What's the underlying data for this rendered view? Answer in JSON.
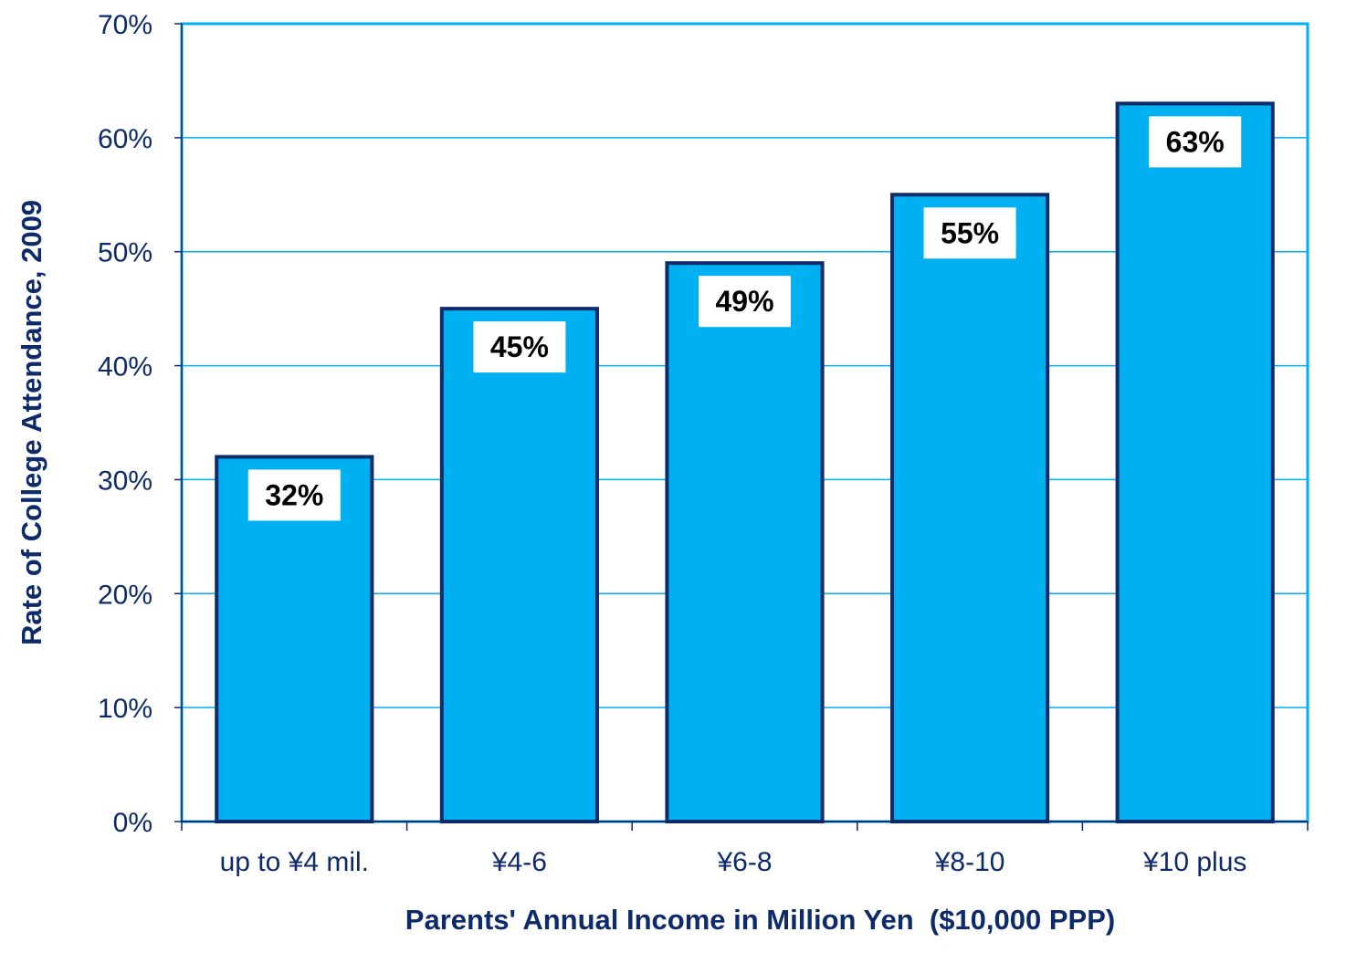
{
  "chart_data": {
    "type": "bar",
    "title": "",
    "categories": [
      "up to ¥4 mil.",
      "¥4-6",
      "¥6-8",
      "¥8-10",
      "¥10 plus"
    ],
    "values": [
      32,
      45,
      49,
      55,
      63
    ],
    "data_labels": [
      "32%",
      "45%",
      "49%",
      "55%",
      "63%"
    ],
    "xlabel": "Parents' Annual Income in Million Yen  ($10,000 PPP)",
    "ylabel": "Rate of College Attendance, 2009",
    "ylim": [
      0,
      70
    ],
    "yticks": [
      0,
      10,
      20,
      30,
      40,
      50,
      60,
      70
    ],
    "ytick_labels": [
      "0%",
      "10%",
      "20%",
      "30%",
      "40%",
      "50%",
      "60%",
      "70%"
    ],
    "grid": true,
    "legend": "none",
    "colors": {
      "bar_fill": "#00b0f0",
      "bar_stroke": "#0d2a6b",
      "grid": "#00b0f0",
      "plot_border": "#00b0f0",
      "axis": "#0d2a6b",
      "text": "#0d2a6b",
      "label_box": "#ffffff"
    }
  }
}
